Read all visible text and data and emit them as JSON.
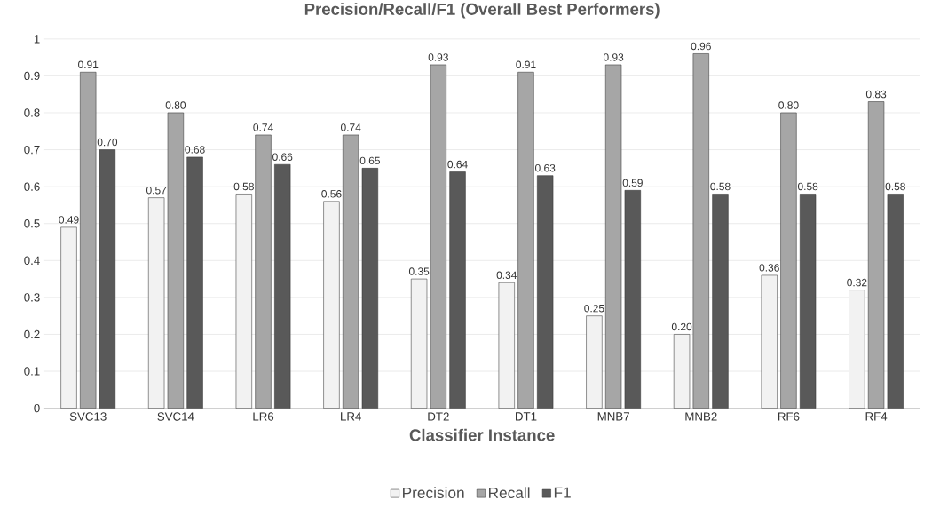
{
  "chart_data": {
    "type": "bar",
    "title": "Precision/Recall/F1 (Overall Best Performers)",
    "xlabel": "Classifier Instance",
    "categories": [
      "SVC13",
      "SVC14",
      "LR6",
      "LR4",
      "DT2",
      "DT1",
      "MNB7",
      "MNB2",
      "RF6",
      "RF4"
    ],
    "series": [
      {
        "name": "Precision",
        "color": "#f2f2f2",
        "values": [
          0.49,
          0.57,
          0.58,
          0.56,
          0.35,
          0.34,
          0.25,
          0.2,
          0.36,
          0.32
        ],
        "value_labels": [
          "0.49",
          "0.57",
          "0.58",
          "0.56",
          "0.35",
          "0.34",
          "0.25",
          "0.20",
          "0.36",
          "0.32"
        ]
      },
      {
        "name": "Recall",
        "color": "#a6a6a6",
        "values": [
          0.91,
          0.8,
          0.74,
          0.74,
          0.93,
          0.91,
          0.93,
          0.96,
          0.8,
          0.83
        ],
        "value_labels": [
          "0.91",
          "0.80",
          "0.74",
          "0.74",
          "0.93",
          "0.91",
          "0.93",
          "0.96",
          "0.80",
          "0.83"
        ]
      },
      {
        "name": "F1",
        "color": "#595959",
        "values": [
          0.7,
          0.68,
          0.66,
          0.65,
          0.64,
          0.63,
          0.59,
          0.58,
          0.58,
          0.58
        ],
        "value_labels": [
          "0.70",
          "0.68",
          "0.66",
          "0.65",
          "0.64",
          "0.63",
          "0.59",
          "0.58",
          "0.58",
          "0.58"
        ]
      }
    ],
    "ylim": [
      0,
      1
    ],
    "yticks": [
      0,
      0.1,
      0.2,
      0.3,
      0.4,
      0.5,
      0.6,
      0.7,
      0.8,
      0.9,
      1
    ],
    "grid": "y",
    "legend": "bottom"
  }
}
